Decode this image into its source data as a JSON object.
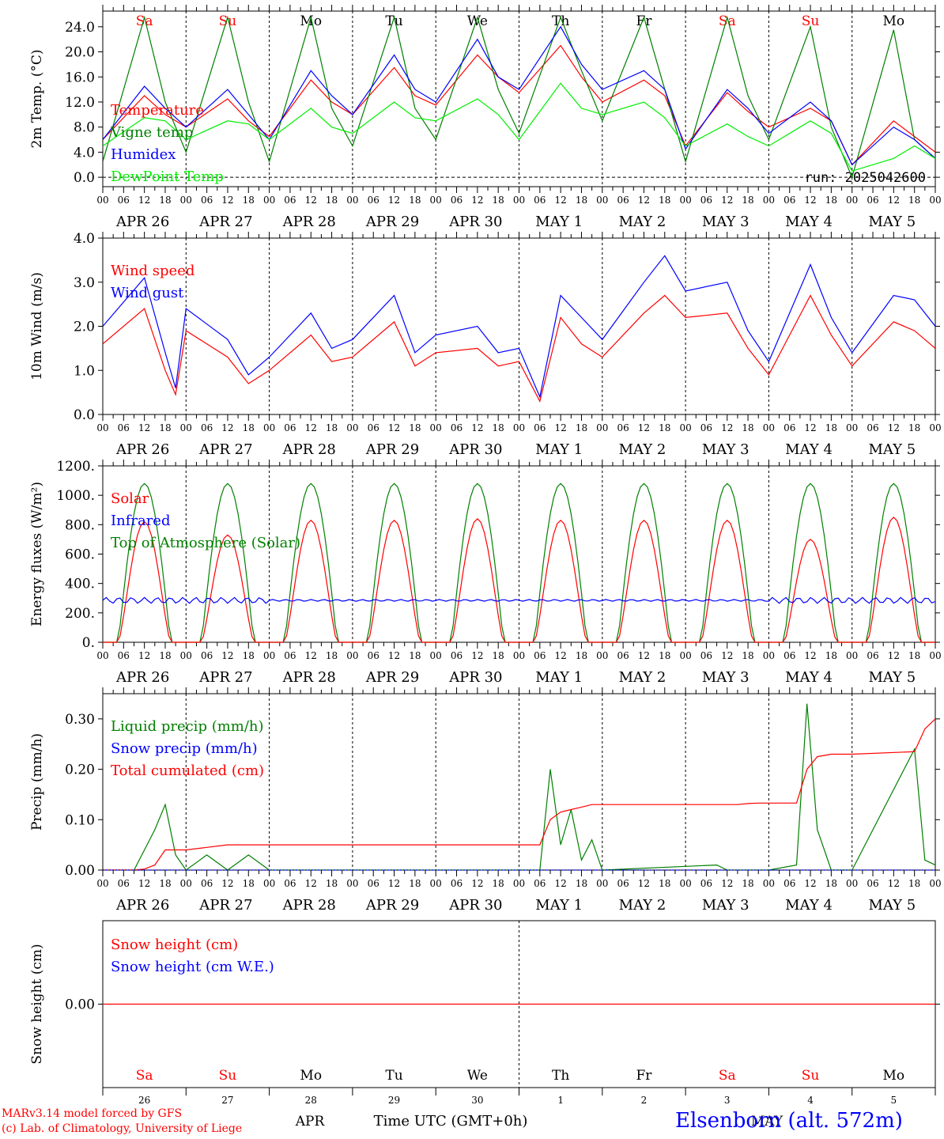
{
  "chart_data": [
    {
      "type": "line",
      "ylabel": "2m Temp. (°C)",
      "ylim": [
        -1.5,
        26.5
      ],
      "yticks": [
        "24.0",
        "20.0",
        "16.0",
        "12.0",
        "8.0",
        "4.0",
        "0.0"
      ],
      "run_label": "run: 2025042600",
      "x_hours": [
        0,
        12,
        18,
        24,
        36,
        42,
        48,
        60,
        66,
        72,
        84,
        90,
        96,
        108,
        114,
        120,
        132,
        138,
        144,
        156,
        162,
        168,
        180,
        186,
        192,
        204,
        210,
        216,
        228,
        234,
        240
      ],
      "series": [
        {
          "name": "Temperature",
          "color": "#ff0000",
          "values": [
            6,
            13,
            10,
            8,
            12.5,
            9,
            6.5,
            15.5,
            12,
            10,
            17.5,
            13,
            11.5,
            19.5,
            16,
            13.5,
            21,
            16,
            12,
            15.5,
            13,
            5,
            13.5,
            10.5,
            8,
            11,
            9,
            2,
            9,
            6.5,
            4
          ]
        },
        {
          "name": "Vigne temp",
          "color": "#008000",
          "values": [
            2.5,
            25.5,
            12,
            4,
            25.5,
            12,
            2.5,
            25.5,
            11,
            5,
            25.5,
            11,
            6,
            25.5,
            14,
            7,
            25.5,
            17,
            9,
            25.5,
            14,
            2.5,
            25.5,
            13,
            6,
            24,
            8,
            0,
            23.5,
            6,
            3
          ]
        },
        {
          "name": "Humidex",
          "color": "#0000ff",
          "values": [
            6,
            14.5,
            11,
            8,
            14,
            10,
            6,
            17,
            13,
            10,
            19.5,
            14,
            12,
            22,
            16,
            14,
            24,
            18,
            14,
            17,
            14,
            4.5,
            14,
            11,
            7,
            12,
            9,
            2,
            8,
            6,
            3
          ]
        },
        {
          "name": "DewPoint Temp",
          "color": "#00ee00",
          "values": [
            5,
            9.5,
            9,
            6,
            9,
            8.5,
            6,
            11,
            8,
            7,
            12,
            9.5,
            9,
            12.5,
            10,
            6,
            15,
            11,
            10,
            12,
            9.5,
            5,
            8.5,
            6.5,
            5,
            9,
            7,
            1,
            3,
            5,
            3
          ]
        }
      ]
    },
    {
      "type": "line",
      "ylabel": "10m Wind (m/s)",
      "ylim": [
        0.0,
        4.0
      ],
      "yticks": [
        "4.0",
        "3.0",
        "2.0",
        "1.0",
        "0.0"
      ],
      "x_hours": [
        0,
        12,
        18,
        21,
        24,
        36,
        42,
        48,
        60,
        66,
        72,
        84,
        90,
        96,
        108,
        114,
        120,
        126,
        132,
        138,
        144,
        156,
        162,
        168,
        180,
        186,
        192,
        204,
        210,
        216,
        228,
        234,
        240
      ],
      "series": [
        {
          "name": "Wind speed",
          "color": "#ff0000",
          "values": [
            1.6,
            2.4,
            1.0,
            0.45,
            1.9,
            1.3,
            0.7,
            1.0,
            1.8,
            1.2,
            1.3,
            2.1,
            1.1,
            1.4,
            1.5,
            1.1,
            1.2,
            0.3,
            2.2,
            1.6,
            1.3,
            2.3,
            2.7,
            2.2,
            2.3,
            1.5,
            0.9,
            2.7,
            1.8,
            1.1,
            2.1,
            1.9,
            1.5
          ]
        },
        {
          "name": "Wind gust",
          "color": "#0000ff",
          "values": [
            2.0,
            3.1,
            1.4,
            0.6,
            2.4,
            1.7,
            0.9,
            1.3,
            2.3,
            1.5,
            1.7,
            2.7,
            1.4,
            1.8,
            2.0,
            1.4,
            1.5,
            0.4,
            2.7,
            2.2,
            1.7,
            3.0,
            3.6,
            2.8,
            3.0,
            1.9,
            1.2,
            3.4,
            2.2,
            1.4,
            2.7,
            2.6,
            2.0
          ]
        }
      ]
    },
    {
      "type": "line",
      "ylabel": "Energy fluxes (W/m²)",
      "ylim": [
        0,
        1200
      ],
      "yticks": [
        "1200.",
        "1000.",
        "800.",
        "600.",
        "400.",
        "200.",
        "0."
      ],
      "daylight_start_h": 4.5,
      "daylight_end_h": 19.5,
      "solar_peaks": [
        820,
        730,
        830,
        830,
        840,
        830,
        830,
        830,
        700,
        850
      ],
      "toa_peak": 1080,
      "infrared_mean": 285,
      "series": [
        {
          "name": "Solar",
          "color": "#ff0000"
        },
        {
          "name": "Infrared",
          "color": "#0000ff"
        },
        {
          "name": "Top of Atmosphere (Solar)",
          "color": "#008000"
        }
      ]
    },
    {
      "type": "line",
      "ylabel": "Precip (mm/h)",
      "ylim": [
        0.0,
        0.35
      ],
      "yticks": [
        "0.30",
        "0.20",
        "0.10",
        "0.00"
      ],
      "x_hours": [
        0,
        9,
        12,
        15,
        18,
        21,
        24,
        30,
        36,
        42,
        48,
        120,
        126,
        129,
        132,
        135,
        138,
        141,
        144,
        177,
        180,
        183,
        186,
        189,
        192,
        200,
        203,
        206,
        210,
        215,
        216,
        234,
        237,
        240
      ],
      "series": [
        {
          "name": "Liquid precip (mm/h)",
          "color": "#008000",
          "values": [
            0,
            0,
            0.04,
            0.08,
            0.13,
            0.03,
            0,
            0.03,
            0,
            0.03,
            0,
            0,
            0,
            0.2,
            0.05,
            0.12,
            0.02,
            0.06,
            0,
            0.01,
            0.0,
            0.0,
            0.0,
            0,
            0,
            0.01,
            0.33,
            0.08,
            0.0,
            0,
            0,
            0.24,
            0.02,
            0.01
          ]
        },
        {
          "name": "Snow precip (mm/h)",
          "color": "#0000ff"
        },
        {
          "name": "Total cumulated (cm)",
          "color": "#ff0000",
          "values": [
            0,
            0,
            0.002,
            0.01,
            0.04,
            0.04,
            0.04,
            0.045,
            0.05,
            0.05,
            0.05,
            0.05,
            0.05,
            0.1,
            0.115,
            0.12,
            0.125,
            0.13,
            0.13,
            0.13,
            0.13,
            0.13,
            0.132,
            0.133,
            0.133,
            0.133,
            0.2,
            0.225,
            0.23,
            0.23,
            0.23,
            0.235,
            0.28,
            0.3
          ]
        }
      ]
    },
    {
      "type": "line",
      "ylabel": "Snow height (cm)",
      "ylim": [
        -1,
        1
      ],
      "yticks": [
        "0.00"
      ],
      "series": [
        {
          "name": "Snow height (cm)",
          "color": "#ff0000",
          "values": [
            0,
            0
          ]
        },
        {
          "name": "Snow height (cm W.E.)",
          "color": "#0000ff"
        }
      ]
    }
  ],
  "x_axis": {
    "hour_labels": [
      "00",
      "06",
      "12",
      "18"
    ],
    "final_hour_label": "00",
    "dates": [
      "APR 26",
      "APR 27",
      "APR 28",
      "APR 29",
      "APR 30",
      "MAY  1",
      "MAY  2",
      "MAY  3",
      "MAY  4",
      "MAY  5"
    ],
    "weekdays": [
      "Sa",
      "Su",
      "Mo",
      "Tu",
      "We",
      "Th",
      "Fr",
      "Sa",
      "Su",
      "Mo"
    ],
    "weekday_colors": [
      "#ff0000",
      "#ff0000",
      "#000000",
      "#000000",
      "#000000",
      "#000000",
      "#000000",
      "#ff0000",
      "#ff0000",
      "#000000"
    ],
    "day_numbers": [
      "26",
      "27",
      "28",
      "29",
      "30",
      "1",
      "2",
      "3",
      "4",
      "5"
    ],
    "month_left": "APR",
    "month_right": "MAY",
    "title": "Time UTC (GMT+0h)"
  },
  "footer": {
    "model_line": "MARv3.14 model forced by GFS",
    "credit_line": "(c) Lab. of Climatology, University of Liege",
    "station": "Elsenborn (alt. 572m)"
  },
  "colors": {
    "red": "#ff0000",
    "green": "#008000",
    "blue": "#0000ff",
    "lightgreen": "#00ee00"
  }
}
